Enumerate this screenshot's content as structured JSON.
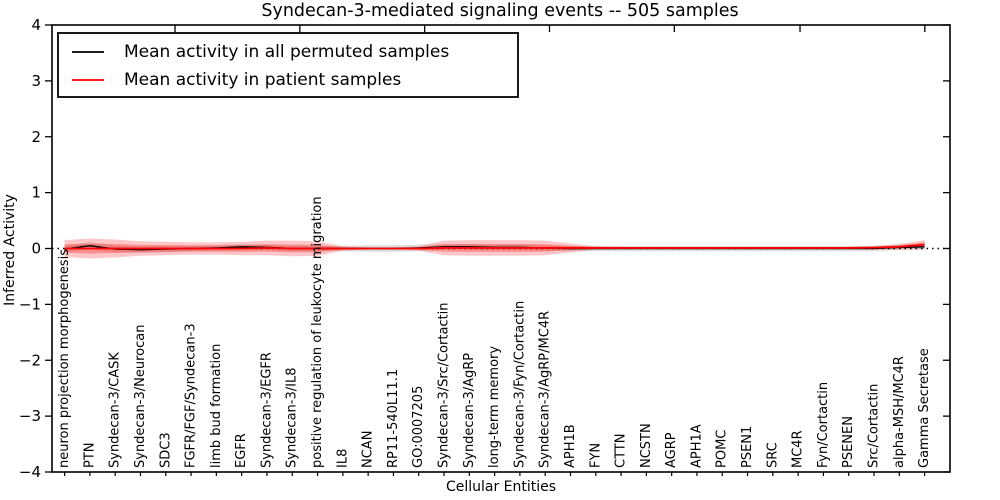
{
  "chart_data": {
    "type": "line",
    "title": "Syndecan-3-mediated signaling events -- 505 samples",
    "xlabel": "Cellular Entities",
    "ylabel": "Inferred Activity",
    "ylim": [
      -4,
      4
    ],
    "grid": false,
    "legend_position": "upper left",
    "zero_line": {
      "style": "dotted",
      "color": "#000000",
      "y": 0
    },
    "yticks": [
      {
        "value": 4,
        "label": "4"
      },
      {
        "value": 3,
        "label": "3"
      },
      {
        "value": 2,
        "label": "2"
      },
      {
        "value": 1,
        "label": "1"
      },
      {
        "value": 0,
        "label": "0"
      },
      {
        "value": -1,
        "label": "−1"
      },
      {
        "value": -2,
        "label": "−2"
      },
      {
        "value": -3,
        "label": "−3"
      },
      {
        "value": -4,
        "label": "−4"
      }
    ],
    "labels": [
      "neuron projection morphogenesis",
      "PTN",
      "Syndecan-3/CASK",
      "Syndecan-3/Neurocan",
      "SDC3",
      "FGFR/FGF/Syndecan-3",
      "limb bud formation",
      "EGFR",
      "Syndecan-3/EGFR",
      "Syndecan-3/IL8",
      "positive regulation of leukocyte migration",
      "IL8",
      "NCAN",
      "RP11-540L11.1",
      "GO:0007205",
      "Syndecan-3/Src/Cortactin",
      "Syndecan-3/AgRP",
      "long-term memory",
      "Syndecan-3/Fyn/Cortactin",
      "Syndecan-3/AgRP/MC4R",
      "APH1B",
      "FYN",
      "CTTN",
      "NCSTN",
      "AGRP",
      "APH1A",
      "POMC",
      "PSEN1",
      "SRC",
      "MC4R",
      "Fyn/Cortactin",
      "PSENEN",
      "Src/Cortactin",
      "alpha-MSH/MC4R",
      "Gamma Secretase"
    ],
    "series": [
      {
        "name": "Mean activity in all permuted samples",
        "key": "permuted",
        "color": "#000000",
        "values": [
          -0.01,
          0.05,
          -0.01,
          -0.02,
          -0.01,
          0,
          0.01,
          0.03,
          0.02,
          0,
          0,
          0,
          0,
          0,
          0.01,
          0.03,
          0.03,
          0.02,
          0.02,
          0.01,
          0,
          0,
          0,
          0,
          0,
          0,
          0,
          0,
          0,
          0,
          0,
          0,
          0,
          0.02,
          0.03
        ]
      },
      {
        "name": "Mean activity in patient samples",
        "key": "patient",
        "color": "#ff0000",
        "values": [
          0,
          0,
          0,
          0,
          0,
          0,
          0,
          0,
          0.01,
          0,
          0,
          0,
          0,
          0,
          0,
          0.01,
          0.01,
          0.01,
          0.01,
          0.01,
          0.01,
          0.01,
          0.01,
          0.01,
          0.01,
          0.01,
          0.01,
          0.01,
          0.01,
          0.01,
          0.01,
          0.01,
          0.015,
          0.03,
          0.07
        ]
      }
    ],
    "bands": [
      {
        "name": "permuted-std",
        "center": "permuted",
        "color": "#000000",
        "opacity": 0.13,
        "half_width": [
          0.06,
          0.06,
          0.06,
          0.06,
          0.06,
          0.05,
          0.05,
          0.05,
          0.05,
          0.05,
          0.05,
          0.05,
          0.06,
          0.06,
          0.06,
          0.05,
          0.05,
          0.05,
          0.05,
          0.05,
          0.05,
          0.05,
          0.05,
          0.05,
          0.05,
          0.05,
          0.05,
          0.05,
          0.05,
          0.05,
          0.05,
          0.05,
          0.05,
          0.05,
          0.06
        ]
      },
      {
        "name": "patient-std-outer",
        "center": "patient",
        "color": "#ff0000",
        "opacity": 0.22,
        "half_width": [
          0.15,
          0.18,
          0.16,
          0.13,
          0.12,
          0.11,
          0.11,
          0.12,
          0.13,
          0.14,
          0.13,
          0.04,
          0.02,
          0.02,
          0.04,
          0.13,
          0.14,
          0.14,
          0.14,
          0.13,
          0.08,
          0.03,
          0.02,
          0.02,
          0.02,
          0.02,
          0.02,
          0.02,
          0.02,
          0.02,
          0.02,
          0.02,
          0.03,
          0.05,
          0.08
        ]
      },
      {
        "name": "patient-std-inner",
        "center": "patient",
        "color": "#ff0000",
        "opacity": 0.28,
        "half_width": [
          0.075,
          0.09,
          0.08,
          0.065,
          0.06,
          0.055,
          0.055,
          0.06,
          0.065,
          0.07,
          0.065,
          0.02,
          0.01,
          0.01,
          0.02,
          0.065,
          0.07,
          0.07,
          0.07,
          0.065,
          0.04,
          0.015,
          0.01,
          0.01,
          0.01,
          0.01,
          0.01,
          0.01,
          0.01,
          0.01,
          0.01,
          0.01,
          0.015,
          0.025,
          0.04
        ]
      }
    ]
  }
}
